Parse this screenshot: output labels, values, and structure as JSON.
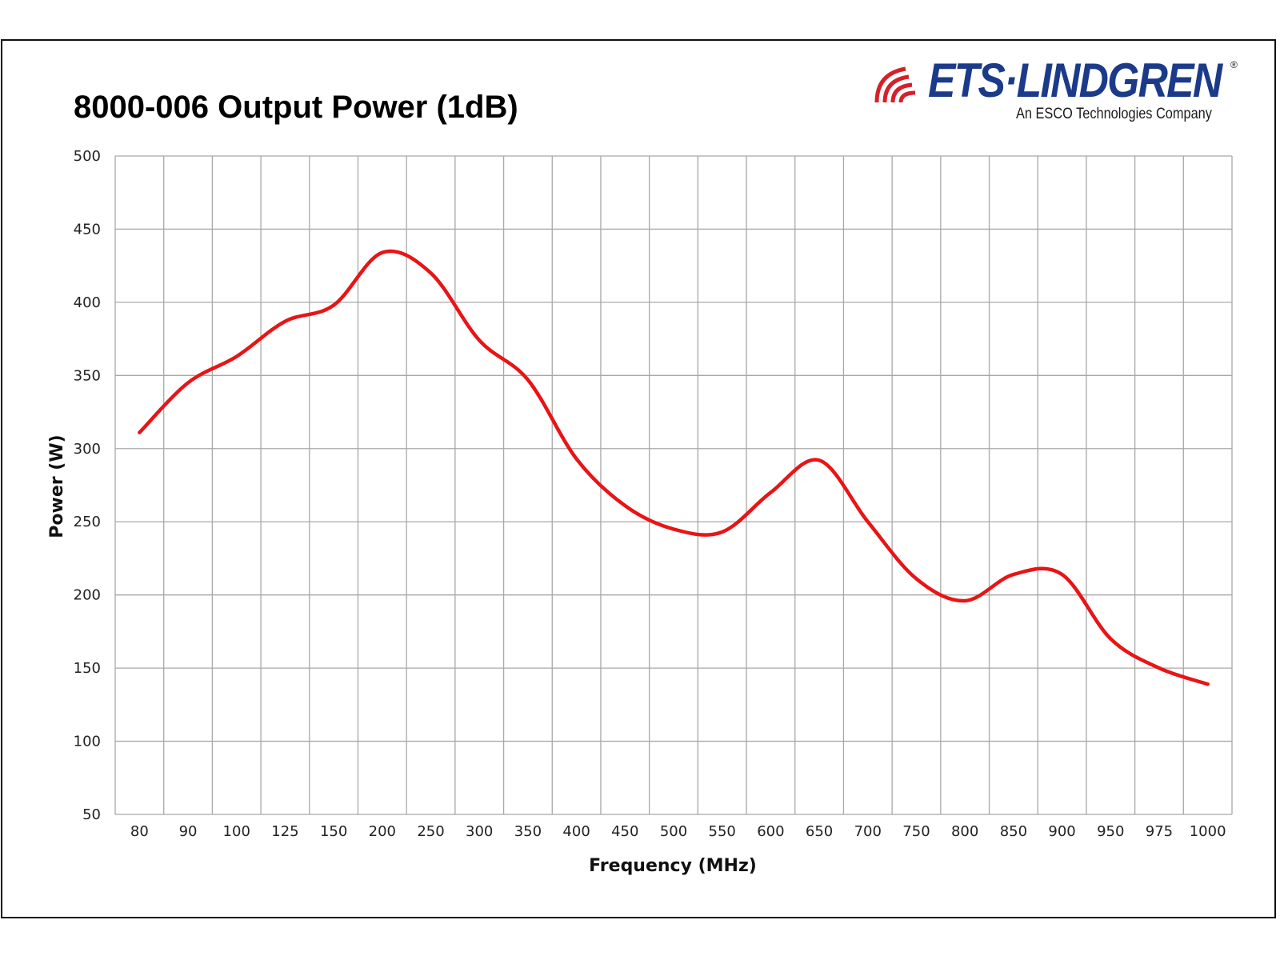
{
  "colors": {
    "line": "#e81416",
    "grid": "#a8a8a8",
    "brand_blue": "#1b3a8a",
    "brand_red": "#d6202a"
  },
  "logo": {
    "name": "ETS·LINDGREN",
    "tagline": "An ESCO Technologies Company",
    "registered": "®"
  },
  "chart_data": {
    "type": "line",
    "title": "8000-006 Output Power (1dB)",
    "xlabel": "Frequency (MHz)",
    "ylabel": "Power (W)",
    "ylim": [
      50,
      500
    ],
    "yticks": [
      50,
      100,
      150,
      200,
      250,
      300,
      350,
      400,
      450,
      500
    ],
    "grid": true,
    "categories": [
      "80",
      "90",
      "100",
      "125",
      "150",
      "200",
      "250",
      "300",
      "350",
      "400",
      "450",
      "500",
      "550",
      "600",
      "650",
      "700",
      "750",
      "800",
      "850",
      "900",
      "950",
      "975",
      "1000"
    ],
    "series": [
      {
        "values": [
          311,
          345,
          363,
          387,
          398,
          434,
          420,
          374,
          347,
          293,
          261,
          245,
          243,
          270,
          292,
          250,
          211,
          196,
          214,
          214,
          170,
          150,
          139
        ]
      }
    ]
  }
}
